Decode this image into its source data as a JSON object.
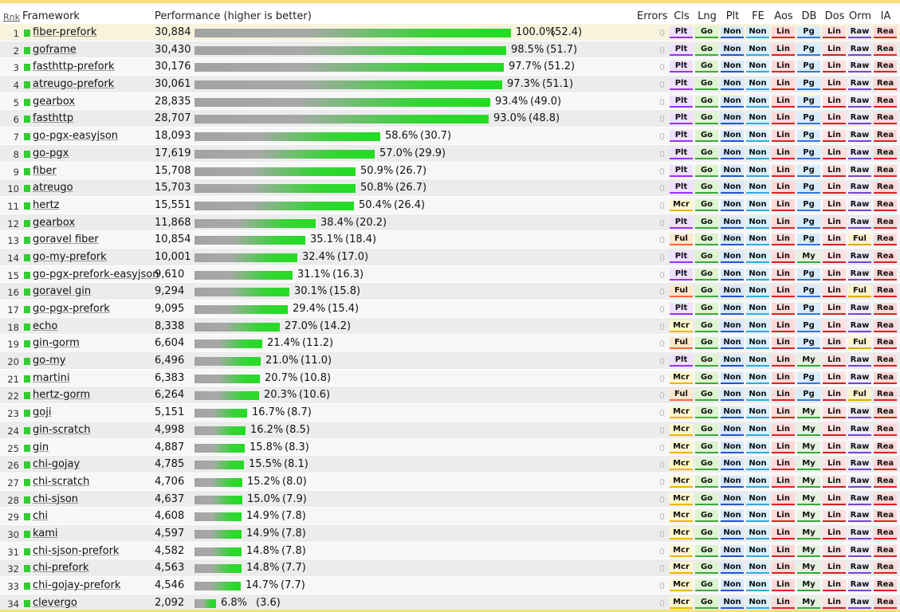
{
  "header": {
    "rnk": "Rnk",
    "framework": "Framework",
    "performance": "Performance (higher is better)",
    "errors": "Errors",
    "cols": [
      "Cls",
      "Lng",
      "Plt",
      "FE",
      "Aos",
      "DB",
      "Dos",
      "Orm",
      "IA"
    ]
  },
  "colors": {
    "bar_green": "#22dd22",
    "bar_gray": "#a8a8a8",
    "square": "#33cc33"
  },
  "rows": [
    {
      "rank": "1",
      "name": "fiber-prefork",
      "value": "30,884",
      "pct": "100.0%",
      "rel": "(52.4)",
      "frac": 1.0,
      "errors": "0",
      "cls": "Plt",
      "db": "Pg",
      "orm": "Raw"
    },
    {
      "rank": "2",
      "name": "goframe",
      "value": "30,430",
      "pct": "98.5%",
      "rel": "(51.7)",
      "frac": 0.985,
      "errors": "0",
      "cls": "Plt",
      "db": "Pg",
      "orm": "Raw"
    },
    {
      "rank": "3",
      "name": "fasthttp-prefork",
      "value": "30,176",
      "pct": "97.7%",
      "rel": "(51.2)",
      "frac": 0.977,
      "errors": "0",
      "cls": "Plt",
      "db": "Pg",
      "orm": "Raw"
    },
    {
      "rank": "4",
      "name": "atreugo-prefork",
      "value": "30,061",
      "pct": "97.3%",
      "rel": "(51.1)",
      "frac": 0.973,
      "errors": "0",
      "cls": "Plt",
      "db": "Pg",
      "orm": "Raw"
    },
    {
      "rank": "5",
      "name": "gearbox",
      "value": "28,835",
      "pct": "93.4%",
      "rel": "(49.0)",
      "frac": 0.934,
      "errors": "0",
      "cls": "Plt",
      "db": "Pg",
      "orm": "Raw"
    },
    {
      "rank": "6",
      "name": "fasthttp",
      "value": "28,707",
      "pct": "93.0%",
      "rel": "(48.8)",
      "frac": 0.93,
      "errors": "0",
      "cls": "Plt",
      "db": "Pg",
      "orm": "Raw"
    },
    {
      "rank": "7",
      "name": "go-pgx-easyjson",
      "value": "18,093",
      "pct": "58.6%",
      "rel": "(30.7)",
      "frac": 0.586,
      "errors": "0",
      "cls": "Plt",
      "db": "Pg",
      "orm": "Raw"
    },
    {
      "rank": "8",
      "name": "go-pgx",
      "value": "17,619",
      "pct": "57.0%",
      "rel": "(29.9)",
      "frac": 0.57,
      "errors": "0",
      "cls": "Plt",
      "db": "Pg",
      "orm": "Raw"
    },
    {
      "rank": "9",
      "name": "fiber",
      "value": "15,708",
      "pct": "50.9%",
      "rel": "(26.7)",
      "frac": 0.509,
      "errors": "0",
      "cls": "Plt",
      "db": "Pg",
      "orm": "Raw"
    },
    {
      "rank": "10",
      "name": "atreugo",
      "value": "15,703",
      "pct": "50.8%",
      "rel": "(26.7)",
      "frac": 0.508,
      "errors": "0",
      "cls": "Plt",
      "db": "Pg",
      "orm": "Raw"
    },
    {
      "rank": "11",
      "name": "hertz",
      "value": "15,551",
      "pct": "50.4%",
      "rel": "(26.4)",
      "frac": 0.504,
      "errors": "0",
      "cls": "Mcr",
      "db": "Pg",
      "orm": "Raw"
    },
    {
      "rank": "12",
      "name": "gearbox",
      "value": "11,868",
      "pct": "38.4%",
      "rel": "(20.2)",
      "frac": 0.384,
      "errors": "0",
      "cls": "Plt",
      "db": "Pg",
      "orm": "Raw"
    },
    {
      "rank": "13",
      "name": "goravel fiber",
      "value": "10,854",
      "pct": "35.1%",
      "rel": "(18.4)",
      "frac": 0.351,
      "errors": "0",
      "cls": "Ful",
      "db": "Pg",
      "orm": "Ful"
    },
    {
      "rank": "14",
      "name": "go-my-prefork",
      "value": "10,001",
      "pct": "32.4%",
      "rel": "(17.0)",
      "frac": 0.324,
      "errors": "0",
      "cls": "Plt",
      "db": "My",
      "orm": "Raw"
    },
    {
      "rank": "15",
      "name": "go-pgx-prefork-easyjson",
      "value": "9,610",
      "pct": "31.1%",
      "rel": "(16.3)",
      "frac": 0.311,
      "errors": "0",
      "cls": "Plt",
      "db": "Pg",
      "orm": "Raw"
    },
    {
      "rank": "16",
      "name": "goravel gin",
      "value": "9,294",
      "pct": "30.1%",
      "rel": "(15.8)",
      "frac": 0.301,
      "errors": "0",
      "cls": "Ful",
      "db": "Pg",
      "orm": "Ful"
    },
    {
      "rank": "17",
      "name": "go-pgx-prefork",
      "value": "9,095",
      "pct": "29.4%",
      "rel": "(15.4)",
      "frac": 0.294,
      "errors": "0",
      "cls": "Plt",
      "db": "Pg",
      "orm": "Raw"
    },
    {
      "rank": "18",
      "name": "echo",
      "value": "8,338",
      "pct": "27.0%",
      "rel": "(14.2)",
      "frac": 0.27,
      "errors": "0",
      "cls": "Mcr",
      "db": "Pg",
      "orm": "Raw"
    },
    {
      "rank": "19",
      "name": "gin-gorm",
      "value": "6,604",
      "pct": "21.4%",
      "rel": "(11.2)",
      "frac": 0.214,
      "errors": "0",
      "cls": "Ful",
      "db": "Pg",
      "orm": "Ful"
    },
    {
      "rank": "20",
      "name": "go-my",
      "value": "6,496",
      "pct": "21.0%",
      "rel": "(11.0)",
      "frac": 0.21,
      "errors": "0",
      "cls": "Plt",
      "db": "My",
      "orm": "Raw"
    },
    {
      "rank": "21",
      "name": "martini",
      "value": "6,383",
      "pct": "20.7%",
      "rel": "(10.8)",
      "frac": 0.207,
      "errors": "0",
      "cls": "Mcr",
      "db": "Pg",
      "orm": "Raw"
    },
    {
      "rank": "22",
      "name": "hertz-gorm",
      "value": "6,264",
      "pct": "20.3%",
      "rel": "(10.6)",
      "frac": 0.203,
      "errors": "0",
      "cls": "Ful",
      "db": "Pg",
      "orm": "Ful"
    },
    {
      "rank": "23",
      "name": "goji",
      "value": "5,151",
      "pct": "16.7%",
      "rel": "(8.7)",
      "frac": 0.167,
      "errors": "0",
      "cls": "Mcr",
      "db": "My",
      "orm": "Raw"
    },
    {
      "rank": "24",
      "name": "gin-scratch",
      "value": "4,998",
      "pct": "16.2%",
      "rel": "(8.5)",
      "frac": 0.162,
      "errors": "0",
      "cls": "Mcr",
      "db": "My",
      "orm": "Raw"
    },
    {
      "rank": "25",
      "name": "gin",
      "value": "4,887",
      "pct": "15.8%",
      "rel": "(8.3)",
      "frac": 0.158,
      "errors": "0",
      "cls": "Mcr",
      "db": "My",
      "orm": "Raw"
    },
    {
      "rank": "26",
      "name": "chi-gojay",
      "value": "4,785",
      "pct": "15.5%",
      "rel": "(8.1)",
      "frac": 0.155,
      "errors": "0",
      "cls": "Mcr",
      "db": "My",
      "orm": "Raw"
    },
    {
      "rank": "27",
      "name": "chi-scratch",
      "value": "4,706",
      "pct": "15.2%",
      "rel": "(8.0)",
      "frac": 0.152,
      "errors": "0",
      "cls": "Mcr",
      "db": "My",
      "orm": "Raw"
    },
    {
      "rank": "28",
      "name": "chi-sjson",
      "value": "4,637",
      "pct": "15.0%",
      "rel": "(7.9)",
      "frac": 0.15,
      "errors": "0",
      "cls": "Mcr",
      "db": "My",
      "orm": "Raw"
    },
    {
      "rank": "29",
      "name": "chi",
      "value": "4,608",
      "pct": "14.9%",
      "rel": "(7.8)",
      "frac": 0.149,
      "errors": "0",
      "cls": "Mcr",
      "db": "My",
      "orm": "Raw"
    },
    {
      "rank": "30",
      "name": "kami",
      "value": "4,597",
      "pct": "14.9%",
      "rel": "(7.8)",
      "frac": 0.149,
      "errors": "0",
      "cls": "Mcr",
      "db": "My",
      "orm": "Raw"
    },
    {
      "rank": "31",
      "name": "chi-sjson-prefork",
      "value": "4,582",
      "pct": "14.8%",
      "rel": "(7.8)",
      "frac": 0.148,
      "errors": "0",
      "cls": "Mcr",
      "db": "My",
      "orm": "Raw"
    },
    {
      "rank": "32",
      "name": "chi-prefork",
      "value": "4,563",
      "pct": "14.8%",
      "rel": "(7.7)",
      "frac": 0.148,
      "errors": "0",
      "cls": "Mcr",
      "db": "My",
      "orm": "Raw"
    },
    {
      "rank": "33",
      "name": "chi-gojay-prefork",
      "value": "4,546",
      "pct": "14.7%",
      "rel": "(7.7)",
      "frac": 0.147,
      "errors": "0",
      "cls": "Mcr",
      "db": "My",
      "orm": "Raw"
    },
    {
      "rank": "34",
      "name": "clevergo",
      "value": "2,092",
      "pct": "6.8%",
      "rel": "(3.6)",
      "frac": 0.068,
      "errors": "0",
      "cls": "Mcr",
      "db": "My",
      "orm": "Raw"
    }
  ],
  "fixed_cells": {
    "lng": "Go",
    "plt": "Non",
    "fe": "Non",
    "aos": "Lin",
    "dos": "Lin",
    "ia": "Rea"
  }
}
